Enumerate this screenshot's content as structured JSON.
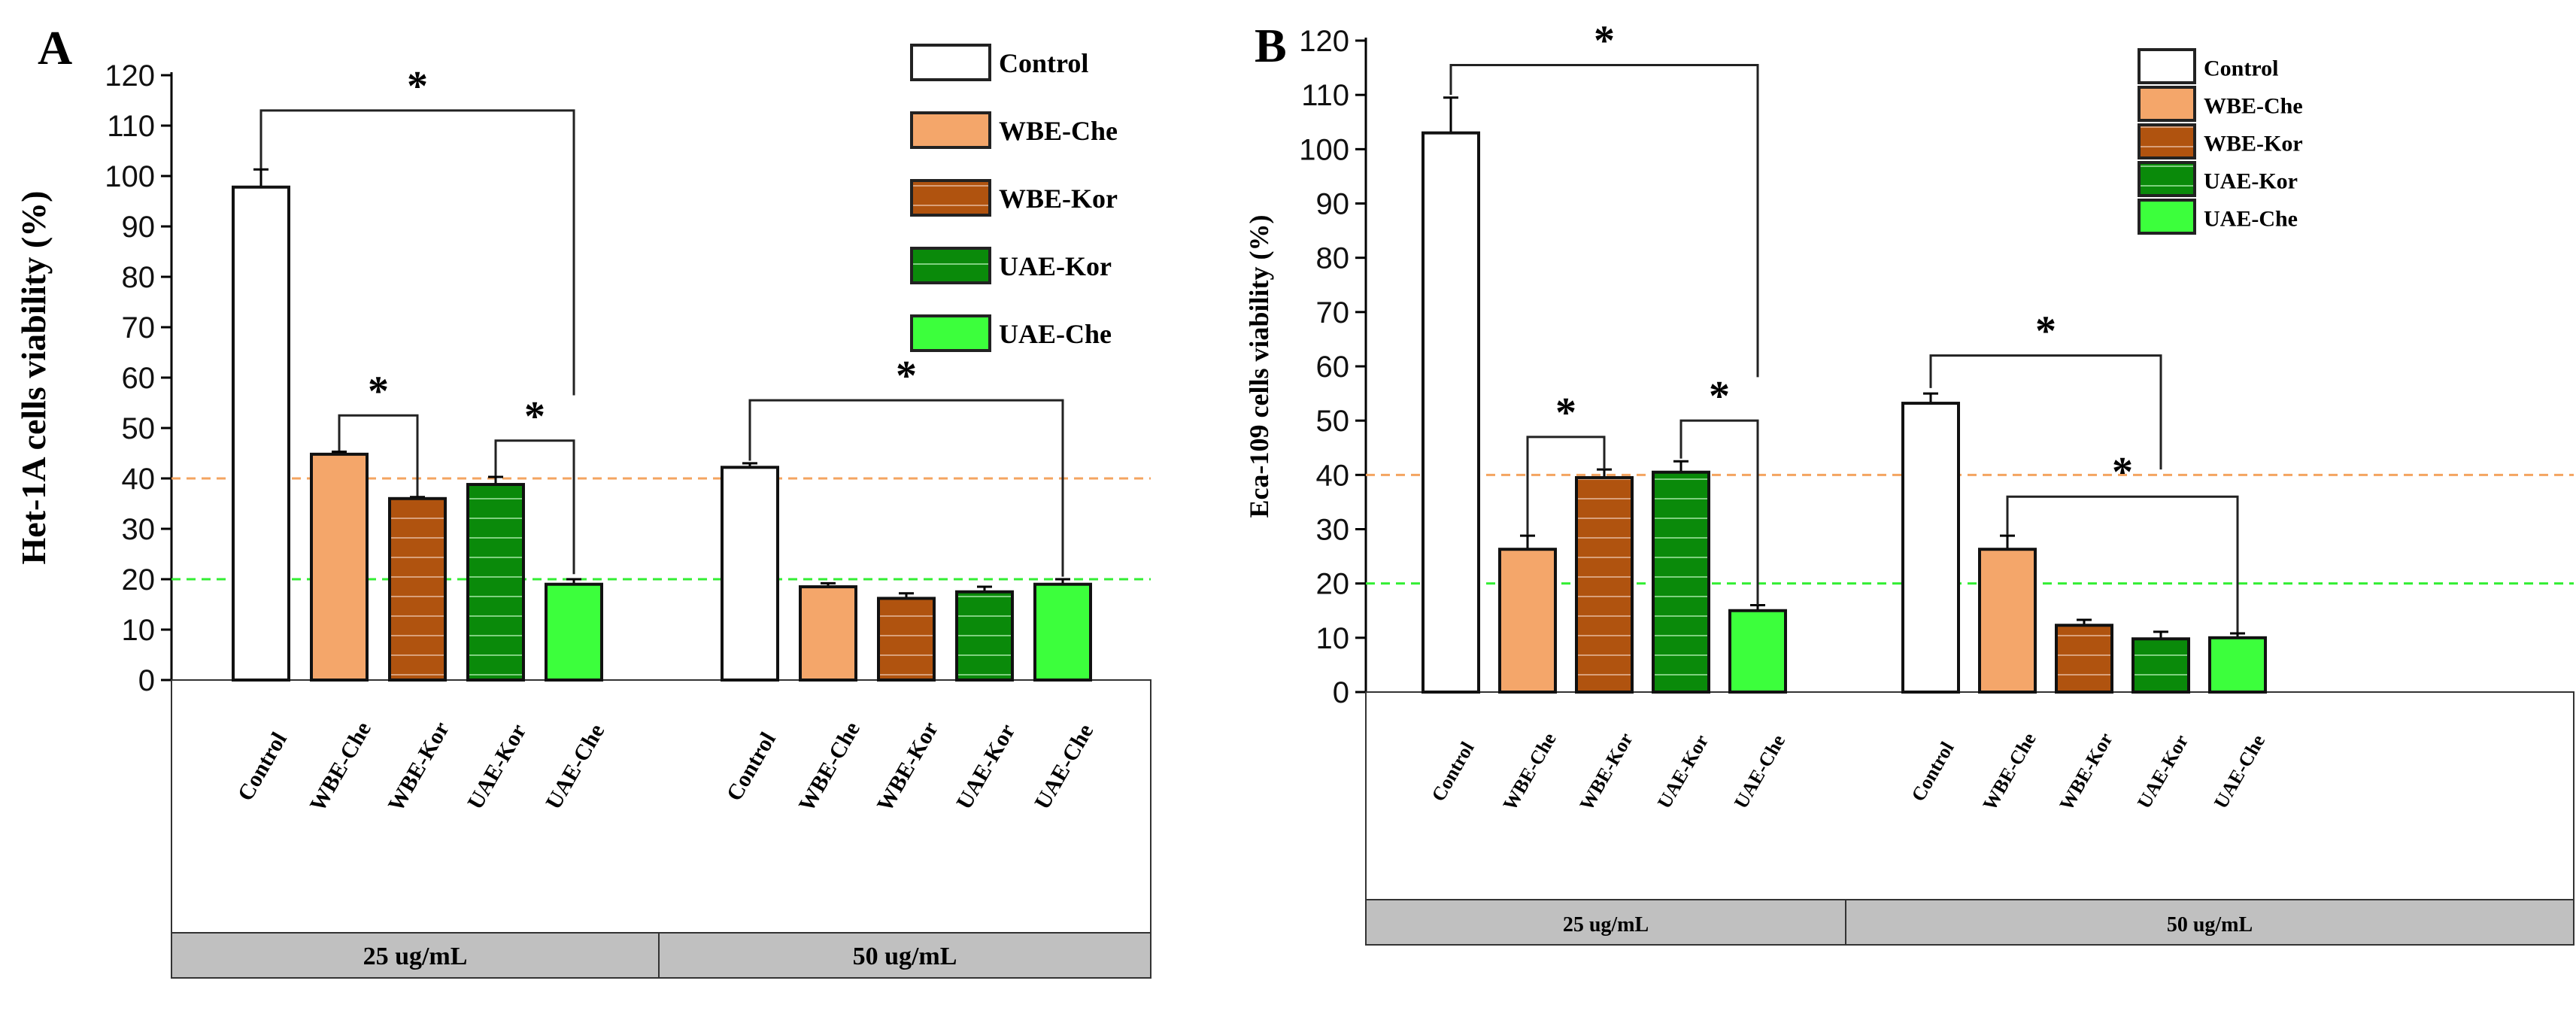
{
  "chart_data": [
    {
      "type": "bar",
      "panel_label": "A",
      "ylabel": "Het-1A cells viability (%)",
      "ylim": [
        0,
        120
      ],
      "yticks": [
        0,
        10,
        20,
        30,
        40,
        50,
        60,
        70,
        80,
        90,
        100,
        110,
        120
      ],
      "groups": [
        "25 ug/mL",
        "50 ug/mL"
      ],
      "categories": [
        "Control",
        "WBE-Che",
        "WBE-Kor",
        "UAE-Kor",
        "UAE-Che"
      ],
      "series": [
        {
          "group": "25 ug/mL",
          "values": [
            97.8,
            44.8,
            36.0,
            38.8,
            19.0
          ],
          "errors": [
            3.5,
            0.5,
            0.3,
            1.5,
            1.0
          ]
        },
        {
          "group": "50 ug/mL",
          "values": [
            42.2,
            18.5,
            16.2,
            17.5,
            19.0
          ],
          "errors": [
            0.8,
            0.7,
            1.0,
            1.0,
            1.0
          ]
        }
      ],
      "reference_lines": [
        {
          "y": 40,
          "color": "#f4a460"
        },
        {
          "y": 20,
          "color": "#33ee33"
        }
      ],
      "significance": [
        {
          "group": 0,
          "from": 0,
          "to": 4,
          "level": 113,
          "from_end": 101.5,
          "to_end": 56.5,
          "label": "*"
        },
        {
          "group": 0,
          "from": 1,
          "to": 2,
          "level": 52.5,
          "from_end": 45.5,
          "to_end": 36.5,
          "label": "*"
        },
        {
          "group": 0,
          "from": 3,
          "to": 4,
          "level": 47.5,
          "from_end": 40.5,
          "to_end": 21,
          "label": "*"
        },
        {
          "group": 1,
          "from": 0,
          "to": 4,
          "level": 55.5,
          "from_end": 43.5,
          "to_end": 20.5,
          "label": "*"
        }
      ],
      "legend": [
        "Control",
        "WBE-Che",
        "WBE-Kor",
        "UAE-Kor",
        "UAE-Che"
      ],
      "legend_position": "top-right"
    },
    {
      "type": "bar",
      "panel_label": "B",
      "ylabel": "Eca-109 cells viability (%)",
      "ylim": [
        0,
        120
      ],
      "yticks": [
        0,
        10,
        20,
        30,
        40,
        50,
        60,
        70,
        80,
        90,
        100,
        110,
        120
      ],
      "groups": [
        "25 ug/mL",
        "50 ug/mL"
      ],
      "categories": [
        "Control",
        "WBE-Che",
        "WBE-Kor",
        "UAE-Kor",
        "UAE-Che"
      ],
      "series": [
        {
          "group": "25 ug/mL",
          "values": [
            103.0,
            26.3,
            39.5,
            40.5,
            15.0
          ],
          "errors": [
            6.5,
            2.5,
            1.5,
            2.0,
            1.0
          ]
        },
        {
          "group": "50 ug/mL",
          "values": [
            53.2,
            26.3,
            12.3,
            9.8,
            10.0
          ],
          "errors": [
            1.8,
            2.5,
            1.0,
            1.3,
            0.8
          ]
        }
      ],
      "reference_lines": [
        {
          "y": 40,
          "color": "#f4a460"
        },
        {
          "y": 20,
          "color": "#33ee33"
        }
      ],
      "significance": [
        {
          "group": 0,
          "from": 0,
          "to": 4,
          "level": 115.5,
          "from_end": 110,
          "to_end": 58,
          "label": "*"
        },
        {
          "group": 0,
          "from": 1,
          "to": 2,
          "level": 47,
          "from_end": 29,
          "to_end": 41,
          "label": "*"
        },
        {
          "group": 0,
          "from": 3,
          "to": 4,
          "level": 50,
          "from_end": 43,
          "to_end": 16,
          "label": "*"
        },
        {
          "group": 1,
          "from": 0,
          "to": 3,
          "level": 62,
          "from_end": 56,
          "to_end": 41,
          "label": "*"
        },
        {
          "group": 1,
          "from": 1,
          "to": 4,
          "level": 36,
          "from_end": 29,
          "to_end": 11,
          "label": "*"
        }
      ],
      "legend": [
        "Control",
        "WBE-Che",
        "WBE-Kor",
        "UAE-Kor",
        "UAE-Che"
      ],
      "legend_position": "top-right"
    }
  ],
  "colors": {
    "Control": "#ffffff",
    "WBE-Che": "#f4a66a",
    "WBE-Kor": "#b0530f",
    "UAE-Kor": "#0a8a0a",
    "UAE-Che": "#3cff3c",
    "group_band": "#c0c0c0"
  }
}
